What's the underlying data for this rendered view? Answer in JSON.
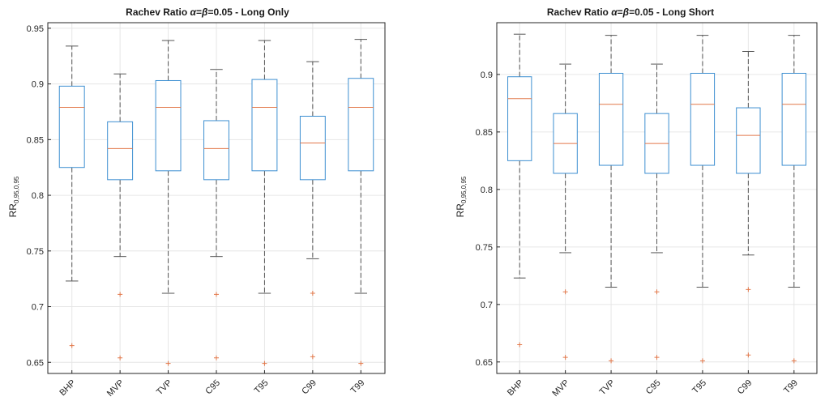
{
  "chart_data": [
    {
      "type": "boxplot",
      "title_parts": {
        "prefix": "Rachev  Ratio  ",
        "alpha": "α",
        "eq": "=",
        "beta": "β",
        "suffix": "=0.05  -  Long Only"
      },
      "ylabel_main": "RR",
      "ylabel_sub": "0,95,0,95",
      "ylim": [
        0.64,
        0.955
      ],
      "yticks": [
        0.65,
        0.7,
        0.75,
        0.8,
        0.85,
        0.9,
        0.95
      ],
      "ytick_labels": [
        "0.65",
        "0.7",
        "0.75",
        "0.8",
        "0.85",
        "0.9",
        "0.95"
      ],
      "grid": true,
      "categories": [
        "BHP",
        "MVP",
        "TVP",
        "C95",
        "T95",
        "C99",
        "T99"
      ],
      "boxes": [
        {
          "whisker_low": 0.723,
          "q1": 0.825,
          "median": 0.879,
          "q3": 0.898,
          "whisker_high": 0.934,
          "outliers": [
            0.665
          ]
        },
        {
          "whisker_low": 0.745,
          "q1": 0.814,
          "median": 0.842,
          "q3": 0.866,
          "whisker_high": 0.909,
          "outliers": [
            0.711,
            0.654
          ]
        },
        {
          "whisker_low": 0.712,
          "q1": 0.822,
          "median": 0.879,
          "q3": 0.903,
          "whisker_high": 0.939,
          "outliers": [
            0.649
          ]
        },
        {
          "whisker_low": 0.745,
          "q1": 0.814,
          "median": 0.842,
          "q3": 0.867,
          "whisker_high": 0.913,
          "outliers": [
            0.711,
            0.654
          ]
        },
        {
          "whisker_low": 0.712,
          "q1": 0.822,
          "median": 0.879,
          "q3": 0.904,
          "whisker_high": 0.939,
          "outliers": [
            0.649
          ]
        },
        {
          "whisker_low": 0.743,
          "q1": 0.814,
          "median": 0.847,
          "q3": 0.871,
          "whisker_high": 0.92,
          "outliers": [
            0.712,
            0.655
          ]
        },
        {
          "whisker_low": 0.712,
          "q1": 0.822,
          "median": 0.879,
          "q3": 0.905,
          "whisker_high": 0.94,
          "outliers": [
            0.649
          ]
        }
      ]
    },
    {
      "type": "boxplot",
      "title_parts": {
        "prefix": "Rachev  Ratio  ",
        "alpha": "α",
        "eq": "=",
        "beta": "β",
        "suffix": "=0.05  -  Long Short"
      },
      "ylabel_main": "RR",
      "ylabel_sub": "0,95,0,95",
      "ylim": [
        0.64,
        0.945
      ],
      "yticks": [
        0.65,
        0.7,
        0.75,
        0.8,
        0.85,
        0.9
      ],
      "ytick_labels": [
        "0.65",
        "0.7",
        "0.75",
        "0.8",
        "0.85",
        "0.9"
      ],
      "grid": true,
      "categories": [
        "BHP",
        "MVP",
        "TVP",
        "C95",
        "T95",
        "C99",
        "T99"
      ],
      "boxes": [
        {
          "whisker_low": 0.723,
          "q1": 0.825,
          "median": 0.879,
          "q3": 0.898,
          "whisker_high": 0.935,
          "outliers": [
            0.665
          ]
        },
        {
          "whisker_low": 0.745,
          "q1": 0.814,
          "median": 0.84,
          "q3": 0.866,
          "whisker_high": 0.909,
          "outliers": [
            0.711,
            0.654
          ]
        },
        {
          "whisker_low": 0.715,
          "q1": 0.821,
          "median": 0.874,
          "q3": 0.901,
          "whisker_high": 0.934,
          "outliers": [
            0.651
          ]
        },
        {
          "whisker_low": 0.745,
          "q1": 0.814,
          "median": 0.84,
          "q3": 0.866,
          "whisker_high": 0.909,
          "outliers": [
            0.711,
            0.654
          ]
        },
        {
          "whisker_low": 0.715,
          "q1": 0.821,
          "median": 0.874,
          "q3": 0.901,
          "whisker_high": 0.934,
          "outliers": [
            0.651
          ]
        },
        {
          "whisker_low": 0.743,
          "q1": 0.814,
          "median": 0.847,
          "q3": 0.871,
          "whisker_high": 0.92,
          "outliers": [
            0.713,
            0.656
          ]
        },
        {
          "whisker_low": 0.715,
          "q1": 0.821,
          "median": 0.874,
          "q3": 0.901,
          "whisker_high": 0.934,
          "outliers": [
            0.651
          ]
        }
      ]
    }
  ],
  "colors": {
    "box": "#3d8fd1",
    "median": "#e2784a",
    "whisker": "#555555",
    "outlier": "#e2784a",
    "grid": "#e6e6e6",
    "axis": "#262626"
  }
}
